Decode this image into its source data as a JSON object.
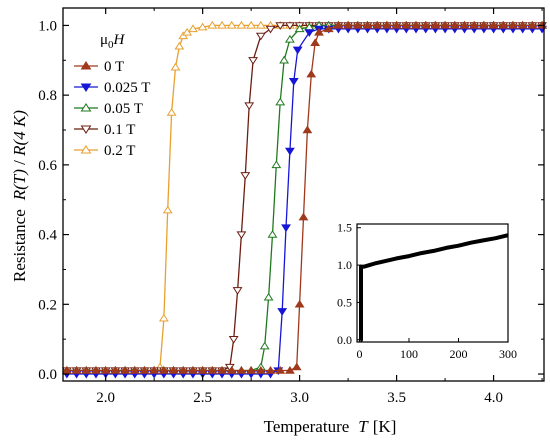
{
  "chart_data": [
    {
      "type": "line",
      "xlabel_prefix": "Temperature",
      "xlabel_symbol": "T",
      "xlabel_unit": "[K]",
      "ylabel_prefix": "Resistance",
      "ylabel_num": "R(T)",
      "ylabel_sep": " / ",
      "ylabel_den": "R(4 K)",
      "xlim": [
        1.78,
        4.26
      ],
      "ylim": [
        -0.02,
        1.05
      ],
      "x_ticks": [
        2.0,
        2.5,
        3.0,
        3.5,
        4.0
      ],
      "x_tick_labels": [
        "2.0",
        "2.5",
        "3.0",
        "3.5",
        "4.0"
      ],
      "y_ticks": [
        0.0,
        0.2,
        0.4,
        0.6,
        0.8,
        1.0
      ],
      "y_tick_labels": [
        "0.0",
        "0.2",
        "0.4",
        "0.6",
        "0.8",
        "1.0"
      ],
      "grid": false,
      "legend": {
        "placement": "top-left",
        "title_mu": "μ",
        "title_sub": "0",
        "title_H": "H"
      },
      "series": [
        {
          "name": "0 T",
          "color": "#a0391c",
          "marker": "triangle-up",
          "filled": true,
          "x": [
            1.8,
            1.85,
            1.9,
            1.95,
            2.0,
            2.05,
            2.1,
            2.15,
            2.2,
            2.25,
            2.3,
            2.35,
            2.4,
            2.45,
            2.5,
            2.55,
            2.6,
            2.65,
            2.7,
            2.75,
            2.8,
            2.85,
            2.9,
            2.95,
            2.985,
            3.0,
            3.02,
            3.04,
            3.06,
            3.08,
            3.1,
            3.15,
            3.2,
            3.25,
            3.3,
            3.35,
            3.4,
            3.45,
            3.5,
            3.55,
            3.6,
            3.65,
            3.7,
            3.75,
            3.8,
            3.85,
            3.9,
            3.95,
            4.0,
            4.05,
            4.1,
            4.15,
            4.2,
            4.25
          ],
          "y": [
            0.01,
            0.01,
            0.01,
            0.01,
            0.01,
            0.01,
            0.01,
            0.01,
            0.01,
            0.01,
            0.01,
            0.01,
            0.01,
            0.01,
            0.01,
            0.01,
            0.01,
            0.01,
            0.01,
            0.01,
            0.01,
            0.01,
            0.01,
            0.01,
            0.02,
            0.2,
            0.45,
            0.7,
            0.86,
            0.95,
            0.98,
            0.99,
            1.0,
            1.0,
            1.0,
            1.0,
            1.0,
            1.0,
            1.0,
            1.0,
            1.0,
            1.0,
            1.0,
            1.0,
            1.0,
            1.0,
            1.0,
            1.0,
            1.0,
            1.0,
            1.0,
            1.0,
            1.0,
            1.0
          ]
        },
        {
          "name": "0.025 T",
          "color": "#1616d8",
          "marker": "triangle-down",
          "filled": true,
          "x": [
            1.8,
            1.85,
            1.9,
            1.95,
            2.0,
            2.05,
            2.1,
            2.15,
            2.2,
            2.25,
            2.3,
            2.35,
            2.4,
            2.45,
            2.5,
            2.55,
            2.6,
            2.65,
            2.7,
            2.75,
            2.8,
            2.85,
            2.89,
            2.91,
            2.93,
            2.95,
            2.97,
            2.99,
            3.05,
            3.1,
            3.15,
            3.2,
            3.25,
            3.3,
            3.35,
            3.4,
            3.45,
            3.5,
            3.55,
            3.6,
            3.65,
            3.7,
            3.75,
            3.8,
            3.85,
            3.9,
            3.95,
            4.0,
            4.05,
            4.1,
            4.15,
            4.2,
            4.25
          ],
          "y": [
            0.0,
            0.0,
            0.0,
            0.0,
            0.0,
            0.0,
            0.0,
            0.0,
            0.0,
            0.0,
            0.0,
            0.0,
            0.0,
            0.0,
            0.0,
            0.0,
            0.0,
            0.0,
            0.0,
            0.0,
            0.0,
            0.0,
            0.01,
            0.18,
            0.42,
            0.64,
            0.84,
            0.93,
            0.98,
            0.99,
            0.99,
            0.99,
            0.99,
            0.99,
            0.99,
            0.99,
            0.99,
            0.99,
            0.99,
            0.99,
            0.99,
            0.99,
            0.99,
            0.99,
            0.99,
            0.99,
            0.99,
            0.99,
            0.99,
            0.99,
            0.99,
            0.99,
            0.99
          ]
        },
        {
          "name": "0.05 T",
          "color": "#1f7a1f",
          "marker": "triangle-up",
          "filled": false,
          "x": [
            1.8,
            1.85,
            1.9,
            1.95,
            2.0,
            2.05,
            2.1,
            2.15,
            2.2,
            2.25,
            2.3,
            2.35,
            2.4,
            2.45,
            2.5,
            2.55,
            2.6,
            2.65,
            2.7,
            2.75,
            2.8,
            2.82,
            2.84,
            2.86,
            2.88,
            2.9,
            2.92,
            2.95,
            3.0,
            3.05,
            3.1,
            3.15,
            3.2,
            3.25,
            3.3,
            3.35,
            3.4,
            3.45,
            3.5,
            3.55,
            3.6,
            3.65,
            3.7,
            3.75,
            3.8,
            3.85,
            3.9,
            3.95,
            4.0,
            4.05,
            4.1,
            4.15,
            4.2,
            4.25
          ],
          "y": [
            0.01,
            0.01,
            0.01,
            0.01,
            0.01,
            0.01,
            0.01,
            0.01,
            0.01,
            0.01,
            0.01,
            0.01,
            0.01,
            0.01,
            0.01,
            0.01,
            0.01,
            0.01,
            0.01,
            0.01,
            0.02,
            0.08,
            0.22,
            0.4,
            0.6,
            0.78,
            0.9,
            0.96,
            0.99,
            0.995,
            1.0,
            1.0,
            1.0,
            1.0,
            1.0,
            1.0,
            1.0,
            1.0,
            1.0,
            1.0,
            1.0,
            1.0,
            1.0,
            1.0,
            1.0,
            1.0,
            1.0,
            1.0,
            1.0,
            1.0,
            1.0,
            1.0,
            1.0,
            1.0
          ]
        },
        {
          "name": "0.1 T",
          "color": "#6b1d12",
          "marker": "triangle-down",
          "filled": false,
          "x": [
            1.8,
            1.85,
            1.9,
            1.95,
            2.0,
            2.05,
            2.1,
            2.15,
            2.2,
            2.25,
            2.3,
            2.35,
            2.4,
            2.45,
            2.5,
            2.55,
            2.6,
            2.64,
            2.66,
            2.68,
            2.7,
            2.72,
            2.74,
            2.76,
            2.8,
            2.85,
            2.9,
            2.95,
            3.0,
            3.05,
            3.1,
            3.15,
            3.2,
            3.25,
            3.3,
            3.35,
            3.4,
            3.45,
            3.5,
            3.55,
            3.6,
            3.65,
            3.7,
            3.75,
            3.8,
            3.85,
            3.9,
            3.95,
            4.0,
            4.05,
            4.1,
            4.15,
            4.2,
            4.25
          ],
          "y": [
            0.01,
            0.01,
            0.01,
            0.01,
            0.01,
            0.01,
            0.01,
            0.01,
            0.01,
            0.01,
            0.01,
            0.01,
            0.01,
            0.01,
            0.01,
            0.01,
            0.01,
            0.02,
            0.1,
            0.24,
            0.4,
            0.57,
            0.77,
            0.9,
            0.97,
            0.99,
            1.0,
            1.0,
            1.0,
            1.0,
            1.0,
            1.0,
            1.0,
            1.0,
            1.0,
            1.0,
            1.0,
            1.0,
            1.0,
            1.0,
            1.0,
            1.0,
            1.0,
            1.0,
            1.0,
            1.0,
            1.0,
            1.0,
            1.0,
            1.0,
            1.0,
            1.0,
            1.0,
            1.0
          ]
        },
        {
          "name": "0.2 T",
          "color": "#e8a030",
          "marker": "triangle-up",
          "filled": false,
          "x": [
            1.8,
            1.85,
            1.9,
            1.95,
            2.0,
            2.05,
            2.1,
            2.15,
            2.2,
            2.25,
            2.28,
            2.3,
            2.32,
            2.34,
            2.36,
            2.38,
            2.4,
            2.42,
            2.45,
            2.5,
            2.55,
            2.6,
            2.65,
            2.7,
            2.75,
            2.8,
            2.85,
            2.9,
            2.95,
            3.0,
            3.05,
            3.1,
            3.15,
            3.2,
            3.25,
            3.3,
            3.35,
            3.4,
            3.45,
            3.5,
            3.55,
            3.6,
            3.65,
            3.7,
            3.75,
            3.8,
            3.85,
            3.9,
            3.95,
            4.0,
            4.05,
            4.1,
            4.15,
            4.2,
            4.25
          ],
          "y": [
            0.01,
            0.01,
            0.01,
            0.01,
            0.01,
            0.01,
            0.01,
            0.01,
            0.01,
            0.01,
            0.02,
            0.16,
            0.47,
            0.75,
            0.88,
            0.94,
            0.97,
            0.98,
            0.99,
            0.995,
            1.0,
            1.0,
            1.0,
            1.0,
            1.0,
            1.0,
            1.0,
            1.0,
            1.0,
            1.0,
            1.0,
            1.0,
            1.0,
            1.0,
            1.0,
            1.0,
            1.0,
            1.0,
            1.0,
            1.0,
            1.0,
            1.0,
            1.0,
            1.0,
            1.0,
            1.0,
            1.0,
            1.0,
            1.0,
            1.0,
            1.0,
            1.0,
            1.0,
            1.0,
            1.0
          ]
        }
      ]
    },
    {
      "type": "line",
      "role": "inset",
      "xlim": [
        -5,
        300
      ],
      "ylim": [
        -0.03,
        1.55
      ],
      "x_ticks": [
        0,
        100,
        200,
        300
      ],
      "x_tick_labels": [
        "0",
        "100",
        "200",
        "300"
      ],
      "y_ticks": [
        0.0,
        0.5,
        1.0,
        1.5
      ],
      "y_tick_labels": [
        "0.0",
        "0.5",
        "1.0",
        "1.5"
      ],
      "grid": false,
      "series": [
        {
          "color": "#000000",
          "x": [
            1.8,
            3.0,
            3.1,
            4,
            10,
            20,
            30,
            50,
            75,
            100,
            125,
            150,
            175,
            200,
            225,
            250,
            275,
            300
          ],
          "y": [
            0.0,
            0.0,
            0.98,
            0.98,
            0.98,
            1.0,
            1.02,
            1.05,
            1.09,
            1.12,
            1.16,
            1.19,
            1.23,
            1.26,
            1.3,
            1.33,
            1.36,
            1.4
          ]
        }
      ]
    }
  ]
}
